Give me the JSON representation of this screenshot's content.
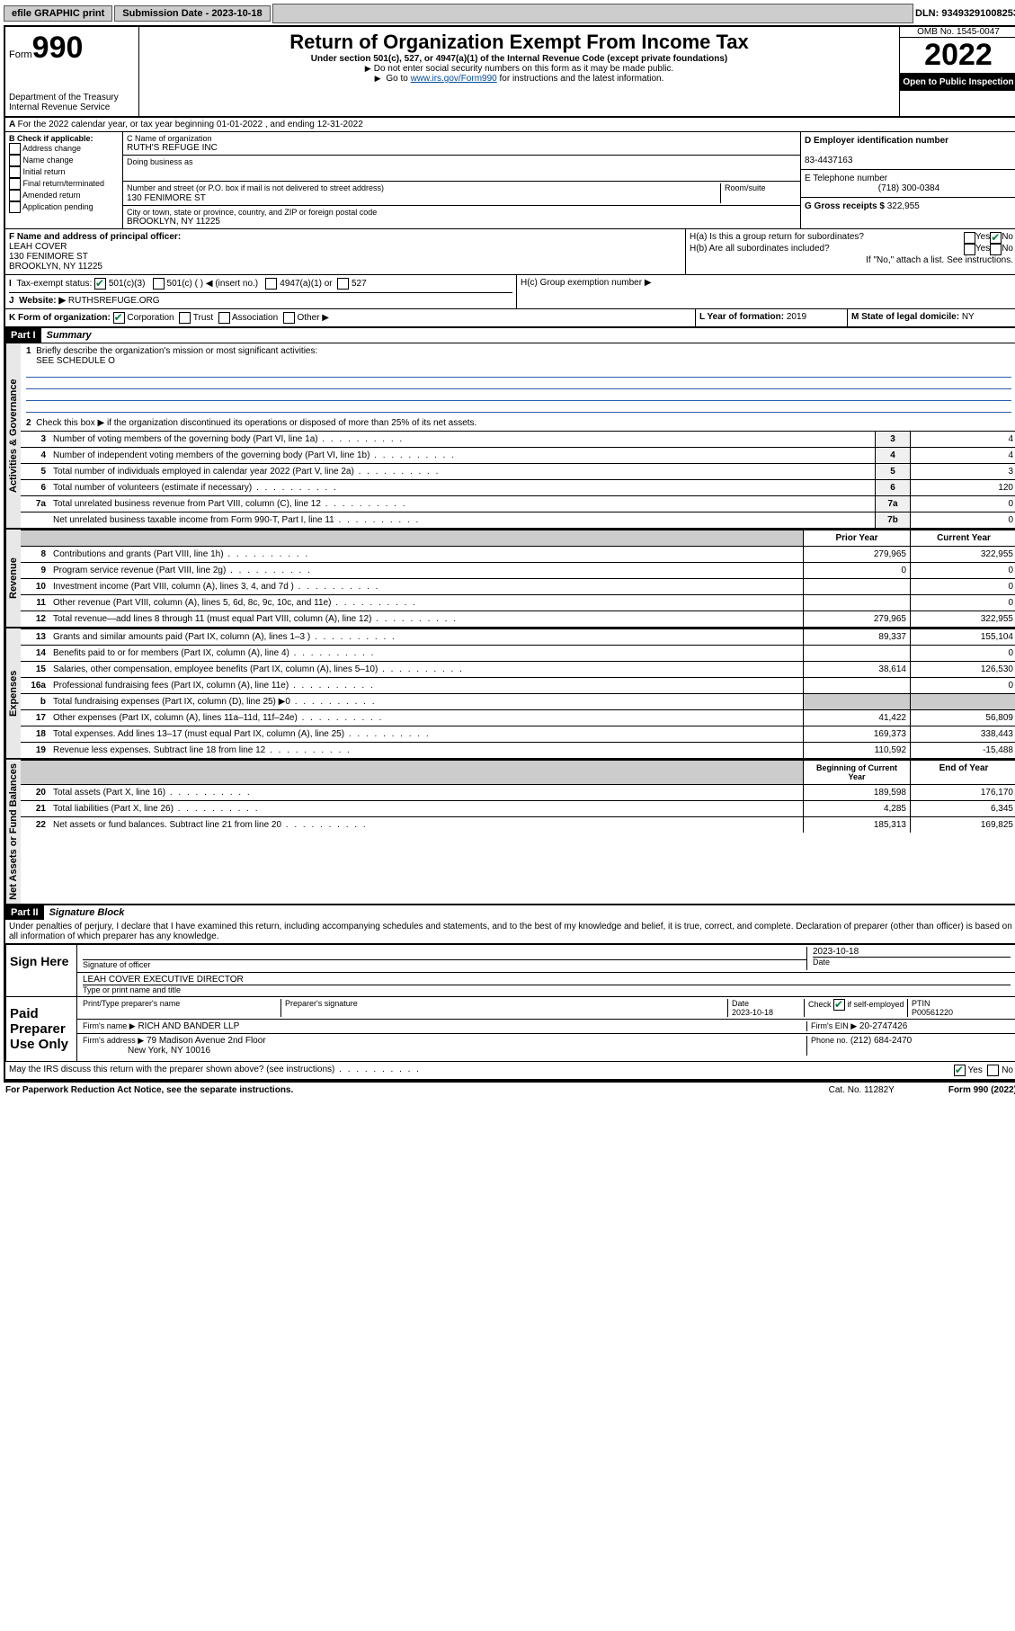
{
  "topbar": {
    "efile": "efile GRAPHIC print",
    "sub_label": "Submission Date - 2023-10-18",
    "dln": "DLN: 93493291008253"
  },
  "header": {
    "form_prefix": "Form",
    "form_no": "990",
    "dept": "Department of the Treasury Internal Revenue Service",
    "title": "Return of Organization Exempt From Income Tax",
    "sub": "Under section 501(c), 527, or 4947(a)(1) of the Internal Revenue Code (except private foundations)",
    "note1": "Do not enter social security numbers on this form as it may be made public.",
    "note2_pre": "Go to ",
    "note2_link": "www.irs.gov/Form990",
    "note2_post": " for instructions and the latest information.",
    "omb": "OMB No. 1545-0047",
    "year": "2022",
    "open": "Open to Public Inspection"
  },
  "rowA": "For the 2022 calendar year, or tax year beginning 01-01-2022    , and ending 12-31-2022",
  "boxB": {
    "title": "B Check if applicable:",
    "items": [
      "Address change",
      "Name change",
      "Initial return",
      "Final return/terminated",
      "Amended return",
      "Application pending"
    ]
  },
  "boxC": {
    "label_name": "C Name of organization",
    "org": "RUTH'S REFUGE INC",
    "dba_label": "Doing business as",
    "addr_label": "Number and street (or P.O. box if mail is not delivered to street address)",
    "room_label": "Room/suite",
    "addr": "130 FENIMORE ST",
    "city_label": "City or town, state or province, country, and ZIP or foreign postal code",
    "city": "BROOKLYN, NY  11225"
  },
  "boxD": {
    "label": "D Employer identification number",
    "val": "83-4437163"
  },
  "boxE": {
    "label": "E Telephone number",
    "val": "(718) 300-0384"
  },
  "boxG": {
    "label": "G Gross receipts $",
    "val": "322,955"
  },
  "boxF": {
    "label": "F  Name and address of principal officer:",
    "name": "LEAH COVER",
    "addr1": "130 FENIMORE ST",
    "addr2": "BROOKLYN, NY  11225"
  },
  "boxH": {
    "a": "H(a)  Is this a group return for subordinates?",
    "b": "H(b)  Are all subordinates included?",
    "note": "If \"No,\" attach a list. See instructions.",
    "c": "H(c)  Group exemption number ▶",
    "yes": "Yes",
    "no": "No"
  },
  "rowI": {
    "label": "Tax-exempt status:",
    "opts": [
      "501(c)(3)",
      "501(c) (  ) ◀ (insert no.)",
      "4947(a)(1) or",
      "527"
    ]
  },
  "rowJ": {
    "label": "Website: ▶",
    "val": "RUTHSREFUGE.ORG"
  },
  "rowK": {
    "label": "K Form of organization:",
    "opts": [
      "Corporation",
      "Trust",
      "Association",
      "Other ▶"
    ]
  },
  "rowL": {
    "label": "L Year of formation:",
    "val": "2019"
  },
  "rowM": {
    "label": "M State of legal domicile:",
    "val": "NY"
  },
  "part1": {
    "hdr": "Part I",
    "title": "Summary",
    "side_gov": "Activities & Governance",
    "side_rev": "Revenue",
    "side_exp": "Expenses",
    "side_net": "Net Assets or Fund Balances",
    "l1": "Briefly describe the organization's mission or most significant activities:",
    "l1v": "SEE SCHEDULE O",
    "l2": "Check this box ▶        if the organization discontinued its operations or disposed of more than 25% of its net assets.",
    "rows_gov": [
      {
        "n": "3",
        "t": "Number of voting members of the governing body (Part VI, line 1a)",
        "ln": "3",
        "v": "4"
      },
      {
        "n": "4",
        "t": "Number of independent voting members of the governing body (Part VI, line 1b)",
        "ln": "4",
        "v": "4"
      },
      {
        "n": "5",
        "t": "Total number of individuals employed in calendar year 2022 (Part V, line 2a)",
        "ln": "5",
        "v": "3"
      },
      {
        "n": "6",
        "t": "Total number of volunteers (estimate if necessary)",
        "ln": "6",
        "v": "120"
      },
      {
        "n": "7a",
        "t": "Total unrelated business revenue from Part VIII, column (C), line 12",
        "ln": "7a",
        "v": "0"
      },
      {
        "n": "",
        "t": "Net unrelated business taxable income from Form 990-T, Part I, line 11",
        "ln": "7b",
        "v": "0"
      }
    ],
    "col_prior": "Prior Year",
    "col_curr": "Current Year",
    "rows_rev": [
      {
        "n": "8",
        "t": "Contributions and grants (Part VIII, line 1h)",
        "p": "279,965",
        "c": "322,955"
      },
      {
        "n": "9",
        "t": "Program service revenue (Part VIII, line 2g)",
        "p": "0",
        "c": "0"
      },
      {
        "n": "10",
        "t": "Investment income (Part VIII, column (A), lines 3, 4, and 7d )",
        "p": "",
        "c": "0"
      },
      {
        "n": "11",
        "t": "Other revenue (Part VIII, column (A), lines 5, 6d, 8c, 9c, 10c, and 11e)",
        "p": "",
        "c": "0"
      },
      {
        "n": "12",
        "t": "Total revenue—add lines 8 through 11 (must equal Part VIII, column (A), line 12)",
        "p": "279,965",
        "c": "322,955"
      }
    ],
    "rows_exp": [
      {
        "n": "13",
        "t": "Grants and similar amounts paid (Part IX, column (A), lines 1–3 )",
        "p": "89,337",
        "c": "155,104"
      },
      {
        "n": "14",
        "t": "Benefits paid to or for members (Part IX, column (A), line 4)",
        "p": "",
        "c": "0"
      },
      {
        "n": "15",
        "t": "Salaries, other compensation, employee benefits (Part IX, column (A), lines 5–10)",
        "p": "38,614",
        "c": "126,530"
      },
      {
        "n": "16a",
        "t": "Professional fundraising fees (Part IX, column (A), line 11e)",
        "p": "",
        "c": "0"
      },
      {
        "n": "b",
        "t": "Total fundraising expenses (Part IX, column (D), line 25) ▶0",
        "p": "shade",
        "c": "shade"
      },
      {
        "n": "17",
        "t": "Other expenses (Part IX, column (A), lines 11a–11d, 11f–24e)",
        "p": "41,422",
        "c": "56,809"
      },
      {
        "n": "18",
        "t": "Total expenses. Add lines 13–17 (must equal Part IX, column (A), line 25)",
        "p": "169,373",
        "c": "338,443"
      },
      {
        "n": "19",
        "t": "Revenue less expenses. Subtract line 18 from line 12",
        "p": "110,592",
        "c": "-15,488"
      }
    ],
    "col_beg": "Beginning of Current Year",
    "col_end": "End of Year",
    "rows_net": [
      {
        "n": "20",
        "t": "Total assets (Part X, line 16)",
        "p": "189,598",
        "c": "176,170"
      },
      {
        "n": "21",
        "t": "Total liabilities (Part X, line 26)",
        "p": "4,285",
        "c": "6,345"
      },
      {
        "n": "22",
        "t": "Net assets or fund balances. Subtract line 21 from line 20",
        "p": "185,313",
        "c": "169,825"
      }
    ]
  },
  "part2": {
    "hdr": "Part II",
    "title": "Signature Block",
    "decl": "Under penalties of perjury, I declare that I have examined this return, including accompanying schedules and statements, and to the best of my knowledge and belief, it is true, correct, and complete. Declaration of preparer (other than officer) is based on all information of which preparer has any knowledge.",
    "sign_here": "Sign Here",
    "sig_officer": "Signature of officer",
    "date": "Date",
    "date_val": "2023-10-18",
    "name_title": "LEAH COVER  EXECUTIVE DIRECTOR",
    "type_name": "Type or print name and title",
    "paid": "Paid Preparer Use Only",
    "pt_name": "Print/Type preparer's name",
    "pt_sig": "Preparer's signature",
    "pt_date": "Date",
    "pt_date_v": "2023-10-18",
    "pt_check": "Check        if self-employed",
    "ptin_l": "PTIN",
    "ptin": "P00561220",
    "firm_name_l": "Firm's name    ▶",
    "firm_name": "RICH AND BANDER LLP",
    "firm_ein_l": "Firm's EIN ▶",
    "firm_ein": "20-2747426",
    "firm_addr_l": "Firm's address ▶",
    "firm_addr1": "79 Madison Avenue 2nd Floor",
    "firm_addr2": "New York, NY  10016",
    "phone_l": "Phone no.",
    "phone": "(212) 684-2470",
    "discuss": "May the IRS discuss this return with the preparer shown above? (see instructions)",
    "yes": "Yes",
    "no": "No"
  },
  "footer": {
    "pra": "For Paperwork Reduction Act Notice, see the separate instructions.",
    "cat": "Cat. No. 11282Y",
    "form": "Form 990 (2022)"
  }
}
